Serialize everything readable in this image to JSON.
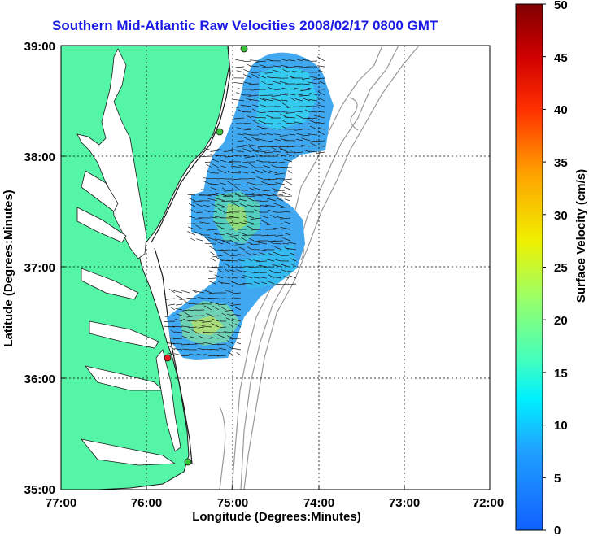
{
  "title": "Southern Mid-Atlantic Raw Velocities 2008/02/17 0800 GMT",
  "xlabel": "Longitude (Degrees:Minutes)",
  "ylabel": "Latitude (Degrees:Minutes)",
  "x_ticks": [
    "77:00",
    "76:00",
    "75:00",
    "74:00",
    "73:00",
    "72:00"
  ],
  "y_ticks": [
    "39:00",
    "38:00",
    "37:00",
    "36:00",
    "35:00"
  ],
  "colorbar": {
    "label": "Surface Velocity (cm/s)",
    "ticks": [
      "50",
      "45",
      "40",
      "35",
      "30",
      "25",
      "20",
      "15",
      "10",
      "5",
      "0"
    ]
  },
  "colors": {
    "land": "#55f5a8",
    "title": "#1a1ae6",
    "station_green": "#3ac33a",
    "station_red": "#e02020",
    "bathymetry": "#999999",
    "vector_field": "#40a8f0"
  },
  "stations": [
    {
      "color": "green"
    },
    {
      "color": "green"
    },
    {
      "color": "red"
    },
    {
      "color": "green"
    }
  ]
}
